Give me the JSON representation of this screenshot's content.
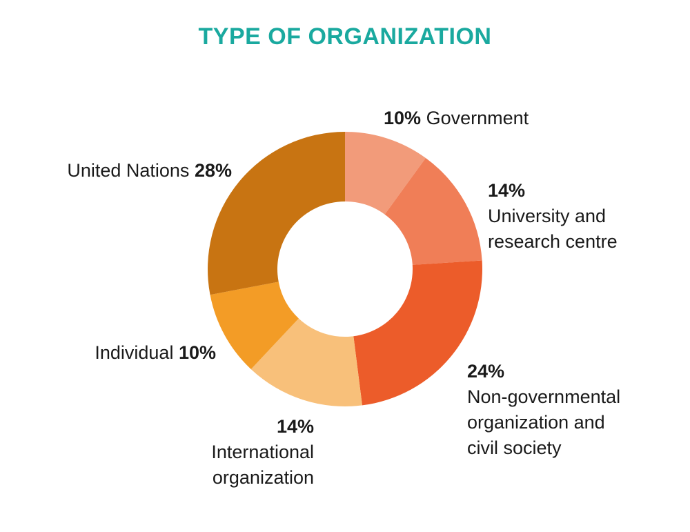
{
  "chart_data": {
    "type": "pie",
    "title": "TYPE OF ORGANIZATION",
    "donut": true,
    "slices": [
      {
        "name": "Government",
        "label_lines": [
          "Government"
        ],
        "value": 10,
        "value_label": "10%",
        "color": "#f29b7a"
      },
      {
        "name": "University and research centre",
        "label_lines": [
          "University and",
          "research centre"
        ],
        "value": 14,
        "value_label": "14%",
        "color": "#f07e57"
      },
      {
        "name": "Non-governmental organization and civil society",
        "label_lines": [
          "Non-governmental",
          "organization and",
          "civil society"
        ],
        "value": 24,
        "value_label": "24%",
        "color": "#ec5c2a"
      },
      {
        "name": "International organization",
        "label_lines": [
          "International",
          "organization"
        ],
        "value": 14,
        "value_label": "14%",
        "color": "#f8c07a"
      },
      {
        "name": "Individual",
        "label_lines": [
          "Individual"
        ],
        "value": 10,
        "value_label": "10%",
        "color": "#f39c26"
      },
      {
        "name": "United Nations",
        "label_lines": [
          "United Nations"
        ],
        "value": 28,
        "value_label": "28%",
        "color": "#c87412"
      }
    ]
  }
}
